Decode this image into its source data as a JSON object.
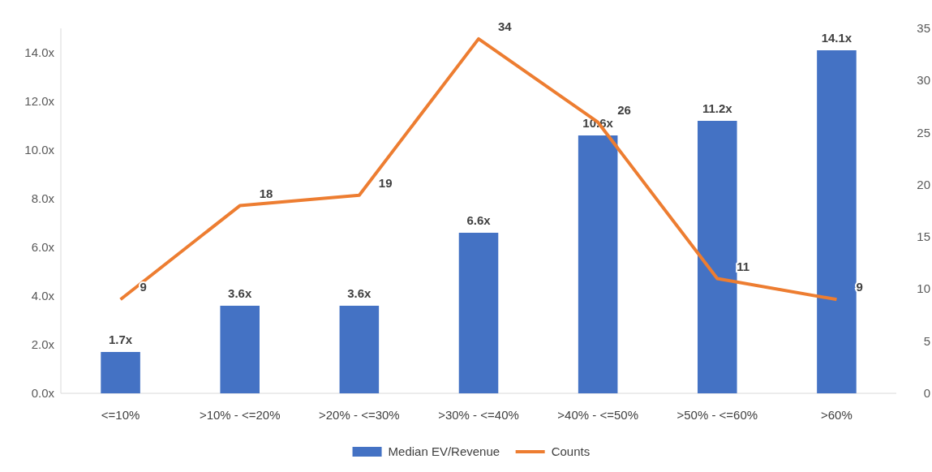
{
  "chart_data": {
    "type": "bar",
    "categories": [
      "<=10%",
      ">10% - <=20%",
      ">20% - <=30%",
      ">30% - <=40%",
      ">40% - <=50%",
      ">50% - <=60%",
      ">60%"
    ],
    "series": [
      {
        "name": "Median EV/Revenue",
        "color": "#4472c4",
        "values": [
          1.7,
          3.6,
          3.6,
          6.6,
          10.6,
          11.2,
          14.1
        ],
        "value_labels": [
          "1.7x",
          "3.6x",
          "3.6x",
          "6.6x",
          "10.6x",
          "11.2x",
          "14.1x"
        ]
      },
      {
        "name": "Counts",
        "type": "line",
        "axis": "y2",
        "color": "#ed7d31",
        "values": [
          9,
          18,
          19,
          34,
          26,
          11,
          9
        ],
        "value_labels": [
          "9",
          "18",
          "19",
          "34",
          "26",
          "11",
          "9"
        ]
      }
    ],
    "ylim": [
      0,
      15
    ],
    "yticks": [
      {
        "value": 0,
        "label": "0.0x"
      },
      {
        "value": 2,
        "label": "2.0x"
      },
      {
        "value": 4,
        "label": "4.0x"
      },
      {
        "value": 6,
        "label": "6.0x"
      },
      {
        "value": 8,
        "label": "8.0x"
      },
      {
        "value": 10,
        "label": "10.0x"
      },
      {
        "value": 12,
        "label": "12.0x"
      },
      {
        "value": 14,
        "label": "14.0x"
      }
    ],
    "y2lim": [
      0,
      35
    ],
    "y2ticks": [
      0,
      5,
      10,
      15,
      20,
      25,
      30,
      35
    ],
    "legend": "bottom",
    "marker": "none",
    "line_style": "solid"
  }
}
